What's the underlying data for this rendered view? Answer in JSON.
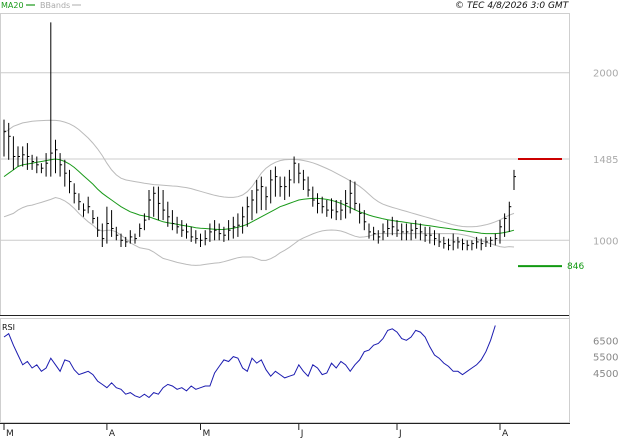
{
  "legend": {
    "ma_label": "MA20",
    "bbands_label": "BBands",
    "ma_color": "#1a9a1a",
    "bbands_color": "#bbbbbb"
  },
  "header": {
    "copyright_symbol": "©",
    "source_text": "TEC 4/8/2026 3:0 GMT"
  },
  "price_axis": {
    "ticks": [
      "2000",
      "1485",
      "1000"
    ]
  },
  "rsi_axis": {
    "label": "RSI",
    "ticks": [
      "6500",
      "5500",
      "4500"
    ]
  },
  "levels": {
    "resistance": {
      "label": "1485",
      "value": 1485,
      "color": "#cc0000"
    },
    "support": {
      "label": "846",
      "value": 846,
      "color": "#119911"
    }
  },
  "x_axis": {
    "labels": [
      "M",
      "A",
      "M",
      "J",
      "J",
      "A"
    ]
  },
  "chart_data": {
    "type": "line",
    "price_range": [
      560,
      2350
    ],
    "rsi_range": [
      1500,
      7800
    ],
    "gridlines": [
      2000,
      1485,
      1000
    ],
    "month_markers": [
      {
        "label": "M",
        "index": 0
      },
      {
        "label": "A",
        "index": 22
      },
      {
        "label": "M",
        "index": 42
      },
      {
        "label": "J",
        "index": 63
      },
      {
        "label": "J",
        "index": 84
      },
      {
        "label": "A",
        "index": 106
      }
    ],
    "series": [
      {
        "name": "Price",
        "type": "hlc",
        "high": [
          1720,
          1700,
          1620,
          1560,
          1560,
          1580,
          1510,
          1500,
          1460,
          1520,
          2300,
          1600,
          1520,
          1480,
          1420,
          1340,
          1280,
          1220,
          1260,
          1180,
          1140,
          1100,
          1200,
          1180,
          1080,
          1040,
          1020,
          1060,
          1040,
          1100,
          1160,
          1300,
          1320,
          1320,
          1300,
          1230,
          1180,
          1140,
          1120,
          1100,
          1080,
          1060,
          1040,
          1060,
          1100,
          1120,
          1100,
          1080,
          1120,
          1140,
          1160,
          1200,
          1260,
          1300,
          1360,
          1380,
          1320,
          1420,
          1440,
          1380,
          1380,
          1420,
          1500,
          1460,
          1420,
          1380,
          1320,
          1280,
          1260,
          1240,
          1250,
          1240,
          1240,
          1300,
          1360,
          1350,
          1220,
          1180,
          1100,
          1080,
          1060,
          1100,
          1120,
          1140,
          1120,
          1100,
          1100,
          1100,
          1120,
          1100,
          1080,
          1080,
          1060,
          1040,
          1020,
          1010,
          1040,
          1020,
          1010,
          1000,
          1000,
          1020,
          1010,
          1020,
          1020,
          1040,
          1120,
          1160,
          1230,
          1420
        ],
        "low": [
          1500,
          1480,
          1420,
          1440,
          1440,
          1420,
          1420,
          1400,
          1400,
          1380,
          1380,
          1400,
          1380,
          1320,
          1280,
          1220,
          1180,
          1140,
          1160,
          1100,
          1020,
          960,
          980,
          1020,
          1000,
          960,
          960,
          980,
          980,
          1020,
          1060,
          1120,
          1140,
          1120,
          1120,
          1080,
          1060,
          1040,
          1020,
          1010,
          990,
          980,
          960,
          970,
          990,
          1000,
          1000,
          990,
          1000,
          1010,
          1020,
          1040,
          1080,
          1120,
          1160,
          1180,
          1180,
          1220,
          1260,
          1260,
          1240,
          1260,
          1340,
          1340,
          1300,
          1260,
          1200,
          1160,
          1160,
          1140,
          1130,
          1120,
          1120,
          1130,
          1160,
          1180,
          1100,
          1060,
          1010,
          1000,
          980,
          1000,
          1020,
          1030,
          1020,
          1000,
          1000,
          1000,
          1010,
          1000,
          990,
          980,
          970,
          960,
          950,
          940,
          940,
          950,
          940,
          940,
          940,
          950,
          940,
          960,
          960,
          970,
          980,
          1020,
          1050,
          1300
        ],
        "close": [
          1650,
          1620,
          1500,
          1500,
          1510,
          1500,
          1470,
          1450,
          1430,
          1460,
          1520,
          1540,
          1450,
          1400,
          1350,
          1280,
          1230,
          1180,
          1200,
          1130,
          1060,
          1010,
          1100,
          1070,
          1030,
          1000,
          990,
          1020,
          1010,
          1070,
          1120,
          1240,
          1280,
          1220,
          1180,
          1140,
          1100,
          1080,
          1060,
          1050,
          1020,
          1010,
          1000,
          1010,
          1050,
          1060,
          1040,
          1030,
          1060,
          1080,
          1090,
          1140,
          1200,
          1240,
          1300,
          1320,
          1260,
          1360,
          1380,
          1320,
          1320,
          1360,
          1460,
          1400,
          1360,
          1300,
          1240,
          1220,
          1200,
          1180,
          1180,
          1170,
          1180,
          1220,
          1280,
          1220,
          1160,
          1110,
          1050,
          1040,
          1020,
          1050,
          1070,
          1080,
          1060,
          1050,
          1050,
          1060,
          1070,
          1050,
          1030,
          1030,
          1010,
          990,
          980,
          970,
          990,
          990,
          980,
          970,
          980,
          990,
          980,
          990,
          1000,
          1010,
          1080,
          1130,
          1200,
          1380
        ]
      },
      {
        "name": "MA20",
        "values": [
          1380,
          1400,
          1420,
          1440,
          1450,
          1455,
          1460,
          1465,
          1470,
          1475,
          1480,
          1485,
          1480,
          1470,
          1455,
          1435,
          1410,
          1385,
          1360,
          1335,
          1305,
          1280,
          1260,
          1240,
          1220,
          1200,
          1185,
          1170,
          1160,
          1150,
          1145,
          1140,
          1130,
          1120,
          1110,
          1105,
          1100,
          1095,
          1090,
          1085,
          1080,
          1075,
          1072,
          1070,
          1068,
          1066,
          1064,
          1065,
          1068,
          1072,
          1078,
          1085,
          1095,
          1110,
          1125,
          1140,
          1155,
          1170,
          1185,
          1200,
          1210,
          1220,
          1230,
          1240,
          1245,
          1248,
          1250,
          1250,
          1248,
          1244,
          1238,
          1230,
          1220,
          1208,
          1195,
          1182,
          1170,
          1160,
          1150,
          1142,
          1135,
          1128,
          1122,
          1118,
          1114,
          1110,
          1106,
          1102,
          1098,
          1094,
          1090,
          1086,
          1082,
          1078,
          1074,
          1070,
          1066,
          1062,
          1058,
          1054,
          1050,
          1046,
          1042,
          1040,
          1040,
          1040,
          1042,
          1046,
          1052,
          1060
        ]
      },
      {
        "name": "BBands",
        "upper": [
          1640,
          1660,
          1680,
          1690,
          1700,
          1705,
          1710,
          1712,
          1714,
          1715,
          1716,
          1715,
          1712,
          1705,
          1695,
          1680,
          1660,
          1635,
          1610,
          1580,
          1545,
          1505,
          1460,
          1420,
          1390,
          1370,
          1360,
          1355,
          1350,
          1345,
          1340,
          1336,
          1332,
          1330,
          1328,
          1326,
          1324,
          1322,
          1318,
          1314,
          1308,
          1300,
          1292,
          1284,
          1276,
          1268,
          1262,
          1258,
          1256,
          1256,
          1260,
          1270,
          1290,
          1320,
          1360,
          1400,
          1430,
          1450,
          1465,
          1475,
          1480,
          1482,
          1482,
          1480,
          1476,
          1470,
          1462,
          1452,
          1440,
          1428,
          1415,
          1400,
          1385,
          1370,
          1355,
          1340,
          1322,
          1300,
          1275,
          1250,
          1230,
          1215,
          1205,
          1196,
          1188,
          1180,
          1172,
          1164,
          1156,
          1148,
          1140,
          1132,
          1124,
          1116,
          1108,
          1100,
          1092,
          1086,
          1082,
          1080,
          1080,
          1082,
          1086,
          1092,
          1100,
          1110,
          1122,
          1136,
          1150,
          1160
        ],
        "lower": [
          1140,
          1150,
          1160,
          1180,
          1195,
          1205,
          1210,
          1218,
          1226,
          1235,
          1244,
          1255,
          1248,
          1235,
          1215,
          1190,
          1160,
          1135,
          1110,
          1090,
          1065,
          1055,
          1060,
          1060,
          1050,
          1030,
          1010,
          985,
          970,
          955,
          950,
          945,
          930,
          910,
          892,
          884,
          876,
          868,
          862,
          856,
          852,
          850,
          852,
          856,
          860,
          864,
          866,
          872,
          880,
          888,
          896,
          900,
          900,
          900,
          890,
          880,
          880,
          890,
          905,
          925,
          940,
          958,
          978,
          1000,
          1014,
          1026,
          1038,
          1048,
          1056,
          1060,
          1061,
          1060,
          1055,
          1046,
          1035,
          1024,
          1018,
          1020,
          1025,
          1034,
          1040,
          1041,
          1039,
          1040,
          1040,
          1040,
          1040,
          1040,
          1040,
          1040,
          1040,
          1040,
          1040,
          1040,
          1040,
          1040,
          1040,
          1038,
          1034,
          1028,
          1020,
          1010,
          998,
          988,
          980,
          970,
          962,
          958,
          962,
          960
        ]
      },
      {
        "name": "RSI",
        "values": [
          6700,
          6900,
          6200,
          5600,
          5000,
          5200,
          4800,
          5000,
          4600,
          4800,
          5400,
          5000,
          4600,
          5300,
          5200,
          4700,
          4400,
          4500,
          4600,
          4400,
          4000,
          3800,
          3600,
          3900,
          3600,
          3500,
          3200,
          3300,
          3100,
          3000,
          3200,
          3000,
          3300,
          3200,
          3600,
          3800,
          3700,
          3500,
          3600,
          3400,
          3700,
          3500,
          3600,
          3700,
          3700,
          4500,
          4900,
          5300,
          5200,
          5500,
          5400,
          4800,
          4600,
          5400,
          5100,
          5300,
          4700,
          4300,
          4600,
          4400,
          4200,
          4300,
          4400,
          5000,
          4600,
          4300,
          5000,
          4800,
          4400,
          4500,
          5100,
          4800,
          5200,
          5000,
          4600,
          5000,
          5300,
          5800,
          5900,
          6200,
          6300,
          6600,
          7100,
          7200,
          7000,
          6600,
          6500,
          6700,
          7100,
          7000,
          6700,
          6100,
          5600,
          5400,
          5100,
          4900,
          4600,
          4600,
          4400,
          4600,
          4800,
          5000,
          5300,
          5800,
          6500,
          7400
        ]
      }
    ]
  }
}
